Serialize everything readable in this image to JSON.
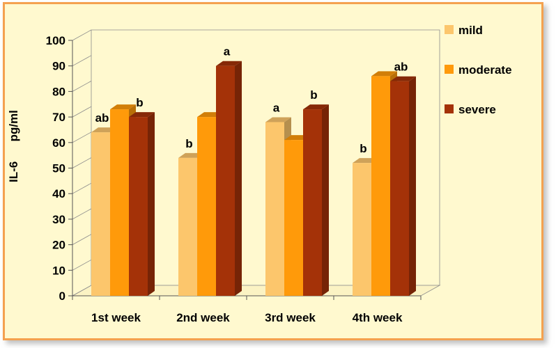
{
  "chart_data": {
    "type": "bar",
    "title": "",
    "xlabel": "",
    "ylabel_parts": [
      "IL-6",
      "pg/ml"
    ],
    "ylim": [
      0,
      100
    ],
    "yticks": [
      0,
      10,
      20,
      30,
      40,
      50,
      60,
      70,
      80,
      90,
      100
    ],
    "categories": [
      "1st week",
      "2nd week",
      "3rd week",
      "4th week"
    ],
    "series": [
      {
        "name": "mild",
        "color": "#fcc66c",
        "values": [
          64,
          54,
          68,
          52
        ],
        "labels": [
          "ab",
          "b",
          "a",
          "b"
        ]
      },
      {
        "name": "moderate",
        "color": "#ff9a0a",
        "values": [
          73,
          70,
          61,
          86
        ],
        "labels": [
          "",
          "",
          "",
          ""
        ]
      },
      {
        "name": "severe",
        "color": "#a43208",
        "values": [
          70,
          90,
          73,
          84
        ],
        "labels": [
          "b",
          "a",
          "b",
          "ab"
        ]
      }
    ],
    "legend_position": "right",
    "grid": false,
    "three_d": true
  }
}
